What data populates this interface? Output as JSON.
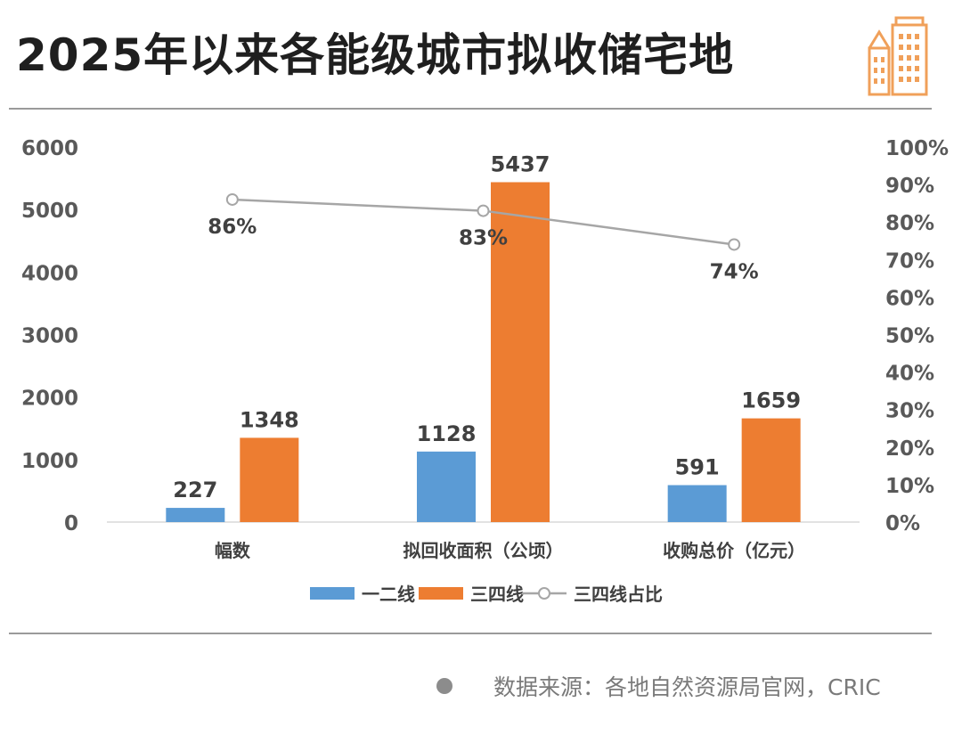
{
  "title": "2025年以来各能级城市拟收储宅地",
  "source": "数据来源：各地自然资源局官网，CRIC",
  "icons": {
    "logo": "building-icon",
    "source_marker": "dot-icon"
  },
  "colors": {
    "series1": "#5b9bd5",
    "series2": "#ed7d31",
    "line": "#a6a6a6",
    "logo": "#f0a05a"
  },
  "chart_data": {
    "type": "bar",
    "categories": [
      "幅数",
      "拟回收面积（公顷）",
      "收购总价（亿元）"
    ],
    "series": [
      {
        "name": "一二线",
        "values": [
          227,
          1128,
          591
        ]
      },
      {
        "name": "三四线",
        "values": [
          1348,
          5437,
          1659
        ]
      }
    ],
    "line_series": {
      "name": "三四线占比",
      "values": [
        0.86,
        0.83,
        0.74
      ],
      "labels": [
        "86%",
        "83%",
        "74%"
      ]
    },
    "ylim": [
      0,
      6000
    ],
    "y_ticks": [
      "0",
      "1000",
      "2000",
      "3000",
      "4000",
      "5000",
      "6000"
    ],
    "y2lim": [
      0,
      1
    ],
    "y2_ticks": [
      "0%",
      "10%",
      "20%",
      "30%",
      "40%",
      "50%",
      "60%",
      "70%",
      "80%",
      "90%",
      "100%"
    ],
    "legend_position": "bottom",
    "grid": false
  }
}
